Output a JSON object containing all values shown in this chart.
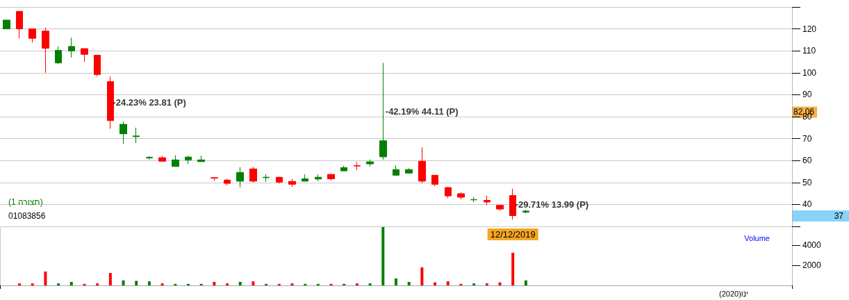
{
  "chart_data": [
    {
      "type": "candlestick",
      "categories": [
        null,
        null,
        null,
        null,
        null,
        null,
        null,
        null,
        null,
        null,
        null,
        null,
        null,
        null,
        null,
        null,
        null,
        null,
        null,
        null,
        null,
        null,
        null,
        null,
        null,
        null,
        null,
        null,
        null,
        null,
        null,
        null,
        null,
        null,
        null,
        null,
        null,
        null,
        null,
        "12/12/2019",
        null,
        null,
        null,
        null,
        null,
        null,
        null,
        null,
        null,
        null,
        null,
        null,
        null,
        null,
        null,
        null,
        null,
        null,
        null,
        null,
        null
      ],
      "ohlc": [
        [
          120,
          124,
          120,
          124
        ],
        [
          128,
          128,
          115.7,
          120
        ],
        [
          120,
          120,
          113.8,
          115.7
        ],
        [
          119,
          120.6,
          100,
          111.2
        ],
        [
          104.5,
          112,
          104,
          110.2
        ],
        [
          110,
          116,
          107,
          112
        ],
        [
          111,
          111,
          105,
          108.4
        ],
        [
          108,
          108,
          98.4,
          99.2
        ],
        [
          96,
          98.3,
          74.5,
          78.2
        ],
        [
          72.2,
          77.8,
          67.5,
          76.5
        ],
        [
          70.9,
          75,
          68,
          71.2
        ],
        [
          61.2,
          62,
          60.5,
          61.5
        ],
        [
          61.3,
          62,
          59.5,
          59.7
        ],
        [
          57.3,
          62.4,
          57.3,
          60.3
        ],
        [
          60.3,
          62.2,
          58.5,
          61.6
        ],
        [
          59.5,
          62.2,
          59.5,
          60.3
        ],
        [
          52.2,
          52.2,
          50.8,
          52
        ],
        [
          51.1,
          51.7,
          48.7,
          49.6
        ],
        [
          50.6,
          57,
          47.8,
          54.6
        ],
        [
          56.2,
          57.1,
          50,
          50.6
        ],
        [
          52.2,
          53.7,
          50.3,
          52.4
        ],
        [
          52.4,
          52.6,
          49.5,
          50.2
        ],
        [
          50.5,
          51.7,
          48,
          49.2
        ],
        [
          50.6,
          53.7,
          50.6,
          51.7
        ],
        [
          51.6,
          53.7,
          50.6,
          52.4
        ],
        [
          53.7,
          53.7,
          51,
          51.7
        ],
        [
          55.3,
          57.6,
          55.3,
          56.8
        ],
        [
          57.7,
          59.3,
          55.7,
          57.5
        ],
        [
          58.5,
          60.5,
          57.3,
          59.4
        ],
        [
          61.7,
          104.5,
          60.4,
          69
        ],
        [
          53.3,
          57.8,
          53.3,
          55.9
        ],
        [
          54.3,
          56.5,
          54,
          55.9
        ],
        [
          59.7,
          66,
          49.7,
          50.6
        ],
        [
          53.3,
          53.3,
          48.4,
          49.2
        ],
        [
          47.7,
          48,
          42.9,
          43.9
        ],
        [
          44.9,
          45.5,
          42.3,
          43.3
        ],
        [
          42.1,
          43.4,
          41,
          42.2
        ],
        [
          41.9,
          44,
          39.7,
          41.1
        ],
        [
          39.6,
          39.6,
          37.2,
          37.9
        ],
        [
          44.1,
          47.1,
          33.1,
          34.9
        ],
        [
          36.5,
          37.5,
          36,
          37
        ],
        null,
        null,
        null,
        null,
        null,
        null,
        null,
        null,
        null,
        null,
        null,
        null,
        null,
        null,
        null,
        null,
        null,
        null,
        null,
        null
      ],
      "colors": [
        "#008000",
        "#ff0000",
        "#ff0000",
        "#ff0000",
        "#008000",
        "#008000",
        "#ff0000",
        "#ff0000",
        "#ff0000",
        "#008000",
        "#008000",
        "#008000",
        "#ff0000",
        "#008000",
        "#008000",
        "#008000",
        "#ff0000",
        "#ff0000",
        "#008000",
        "#ff0000",
        "#008000",
        "#ff0000",
        "#ff0000",
        "#008000",
        "#008000",
        "#ff0000",
        "#008000",
        "#ff0000",
        "#008000",
        "#008000",
        "#008000",
        "#008000",
        "#ff0000",
        "#ff0000",
        "#ff0000",
        "#ff0000",
        "#008000",
        "#ff0000",
        "#ff0000",
        "#ff0000",
        "#008000",
        null,
        null,
        null,
        null,
        null,
        null,
        null,
        null,
        null,
        null,
        null,
        null,
        null,
        null,
        null,
        null,
        null,
        null,
        null,
        null
      ],
      "value_labels": [
        null,
        null,
        null,
        null,
        null,
        null,
        null,
        null,
        "-24.23% 23.81 (P)",
        null,
        null,
        null,
        null,
        null,
        null,
        null,
        null,
        null,
        null,
        null,
        null,
        null,
        null,
        null,
        null,
        null,
        null,
        null,
        null,
        "-42.19% 44.11 (P)",
        null,
        null,
        null,
        null,
        null,
        null,
        null,
        null,
        null,
        "-29.71% 13.99 (P)",
        null,
        null,
        null,
        null,
        null,
        null,
        null,
        null,
        null,
        null,
        null,
        null,
        null,
        null,
        null,
        null,
        null,
        null,
        null,
        null,
        null
      ],
      "ylim": [
        30,
        130
      ],
      "yticks": [
        {
          "value": 30,
          "label": null
        },
        40,
        50,
        60,
        70,
        80,
        90,
        100,
        110,
        120,
        {
          "value": 130,
          "label": null
        }
      ],
      "grid": "y",
      "annotations": [
        "(תצורה 1)",
        "01083856",
        {
          "text": "82.06",
          "y": 82.06
        },
        "37"
      ]
    },
    {
      "type": "bar",
      "ylabel": "Volume",
      "categories": [
        null,
        null,
        null,
        null,
        null,
        null,
        null,
        null,
        null,
        null,
        null,
        null,
        null,
        null,
        null,
        null,
        null,
        null,
        null,
        null,
        null,
        null,
        null,
        null,
        null,
        null,
        null,
        null,
        null,
        null,
        null,
        null,
        null,
        null,
        null,
        null,
        null,
        null,
        null,
        null,
        null,
        null,
        null,
        null,
        null,
        null,
        null,
        null,
        null,
        null,
        null,
        null,
        null,
        null,
        null,
        null,
        "ינו(2020)",
        null,
        null,
        null,
        null
      ],
      "values": [
        null,
        200,
        200,
        1380,
        200,
        350,
        150,
        200,
        1240,
        500,
        450,
        400,
        200,
        150,
        150,
        150,
        350,
        200,
        350,
        400,
        150,
        150,
        200,
        150,
        150,
        150,
        150,
        200,
        200,
        5800,
        690,
        350,
        1790,
        300,
        400,
        150,
        200,
        200,
        300,
        3240,
        500,
        null,
        null,
        null,
        null,
        null,
        null,
        null,
        null,
        null,
        null,
        null,
        null,
        null,
        null,
        null,
        null,
        null,
        null,
        null,
        null
      ],
      "colors": [
        "#008000",
        "#ff0000",
        "#ff0000",
        "#ff0000",
        "#008000",
        "#008000",
        "#ff0000",
        "#ff0000",
        "#ff0000",
        "#008000",
        "#008000",
        "#008000",
        "#ff0000",
        "#008000",
        "#008000",
        "#008000",
        "#ff0000",
        "#ff0000",
        "#008000",
        "#ff0000",
        "#008000",
        "#ff0000",
        "#ff0000",
        "#008000",
        "#008000",
        "#ff0000",
        "#008000",
        "#ff0000",
        "#008000",
        "#008000",
        "#008000",
        "#008000",
        "#ff0000",
        "#ff0000",
        "#ff0000",
        "#ff0000",
        "#008000",
        "#ff0000",
        "#ff0000",
        "#ff0000",
        "#008000",
        null,
        null,
        null,
        null,
        null,
        null,
        null,
        null,
        null,
        null,
        null,
        null,
        null,
        null,
        null,
        null,
        null,
        null,
        null,
        null
      ],
      "ylim": [
        0,
        5860
      ],
      "yticks": [
        2000,
        4000
      ],
      "grid": "x"
    }
  ]
}
